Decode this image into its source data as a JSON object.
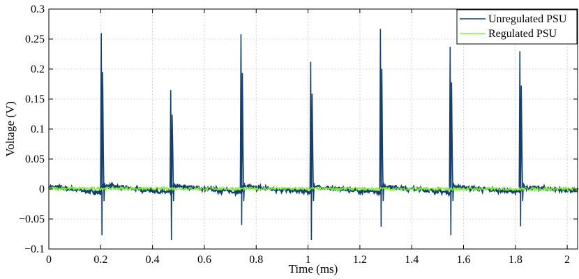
{
  "chart_data": {
    "type": "line",
    "title": "",
    "xlabel": "Time (ms)",
    "ylabel": "Voltage (V)",
    "xlim": [
      0,
      2.04
    ],
    "ylim": [
      -0.1,
      0.3
    ],
    "xticks": [
      0,
      0.2,
      0.4,
      0.6,
      0.8,
      1,
      1.2,
      1.4,
      1.6,
      1.8,
      2
    ],
    "xtick_labels": [
      "0",
      "0.2",
      "0.4",
      "0.6",
      "0.8",
      "1",
      "1.2",
      "1.4",
      "1.6",
      "1.8",
      "2"
    ],
    "yticks": [
      -0.1,
      -0.05,
      0,
      0.05,
      0.1,
      0.15,
      0.2,
      0.25,
      0.3
    ],
    "ytick_labels": [
      "−0.1",
      "−0.05",
      "0",
      "0.05",
      "0.1",
      "0.15",
      "0.2",
      "0.25",
      "0.3"
    ],
    "grid": true,
    "legend_position": "top-right",
    "series": [
      {
        "name": "Unregulated PSU",
        "color": "#16406a",
        "baseline": [
          [
            0,
            0.004
          ],
          [
            0.2,
            -0.006
          ],
          [
            0.21,
            0.006
          ],
          [
            0.47,
            -0.006
          ],
          [
            0.48,
            0.005
          ],
          [
            0.74,
            -0.005
          ],
          [
            0.75,
            0.004
          ],
          [
            1.01,
            -0.005
          ],
          [
            1.02,
            0.004
          ],
          [
            1.28,
            -0.006
          ],
          [
            1.29,
            0.005
          ],
          [
            1.55,
            -0.006
          ],
          [
            1.56,
            0.004
          ],
          [
            1.82,
            -0.005
          ],
          [
            1.83,
            0.003
          ],
          [
            2.04,
            -0.003
          ]
        ],
        "spikes": [
          {
            "t": 0.205,
            "max": 0.26,
            "min": -0.077
          },
          {
            "t": 0.473,
            "max": 0.165,
            "min": -0.085
          },
          {
            "t": 0.744,
            "max": 0.258,
            "min": -0.06
          },
          {
            "t": 1.013,
            "max": 0.212,
            "min": -0.085
          },
          {
            "t": 1.282,
            "max": 0.267,
            "min": -0.063
          },
          {
            "t": 1.551,
            "max": 0.237,
            "min": -0.077
          },
          {
            "t": 1.82,
            "max": 0.23,
            "min": -0.062
          }
        ]
      },
      {
        "name": "Regulated PSU",
        "color": "#7ff23a",
        "values": [
          [
            0,
            0.001
          ],
          [
            2.04,
            0.0
          ]
        ],
        "noise_amplitude": 0.0025
      }
    ]
  }
}
